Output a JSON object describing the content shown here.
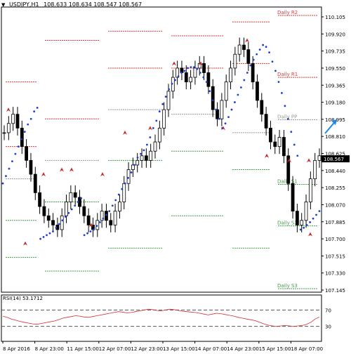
{
  "window": {
    "symbol_caption": "USDJPY,H1",
    "ohlc_caption": "108.633 108.634 108.547 108.567"
  },
  "chart_data": {
    "type": "candlestick",
    "symbol": "USDJPY",
    "timeframe": "H1",
    "price_axis": {
      "ticks": [
        "110.105",
        "109.920",
        "109.735",
        "109.550",
        "109.365",
        "109.180",
        "108.995",
        "108.810",
        "108.625",
        "108.440",
        "108.255",
        "108.070",
        "107.885",
        "107.700",
        "107.515",
        "107.330",
        "107.145"
      ],
      "range": [
        107.145,
        110.105
      ]
    },
    "time_axis": {
      "ticks": [
        "8 Apr 2016",
        "8 Apr 23:00",
        "11 Apr 15:00",
        "12 Apr 07:00",
        "12 Apr 23:00",
        "13 Apr 15:00",
        "14 Apr 07:00",
        "14 Apr 23:00",
        "15 Apr 15:00",
        "18 Apr 07:00"
      ]
    },
    "current_price": "108.567",
    "pivot_labels": [
      {
        "name": "Daily R2",
        "price": 110.12,
        "color": "#e53935"
      },
      {
        "name": "Daily R1",
        "price": 109.45,
        "color": "#e53935"
      },
      {
        "name": "Daily PP",
        "price": 108.99,
        "color": "#999999"
      },
      {
        "name": "Daily S1",
        "price": 108.29,
        "color": "#43a047"
      },
      {
        "name": "Daily S2",
        "price": 107.84,
        "color": "#43a047"
      },
      {
        "name": "Daily S3",
        "price": 107.16,
        "color": "#43a047"
      }
    ],
    "price_series": [
      108.85,
      108.95,
      109.05,
      108.9,
      108.7,
      108.55,
      108.4,
      108.2,
      108.05,
      107.95,
      107.9,
      107.85,
      107.8,
      107.95,
      108.1,
      108.2,
      108.15,
      108.05,
      107.95,
      107.85,
      107.8,
      107.9,
      108.0,
      107.9,
      107.85,
      108.0,
      108.1,
      108.3,
      108.45,
      108.5,
      108.55,
      108.6,
      108.55,
      108.65,
      108.75,
      108.9,
      109.1,
      109.3,
      109.45,
      109.55,
      109.5,
      109.4,
      109.45,
      109.55,
      109.6,
      109.5,
      109.35,
      109.1,
      109.0,
      109.2,
      109.4,
      109.55,
      109.7,
      109.8,
      109.75,
      109.6,
      109.4,
      109.2,
      109.05,
      108.9,
      108.75,
      108.7,
      108.8,
      108.6,
      108.3,
      108.0,
      107.85,
      107.9,
      108.1,
      108.35,
      108.55,
      108.6
    ],
    "psar_dots": [
      108.3,
      108.38,
      108.46,
      108.54,
      108.62,
      108.7,
      108.78,
      108.86,
      108.94,
      109.0,
      109.08,
      109.12,
      107.7,
      107.72,
      107.74,
      107.76,
      107.78,
      107.82,
      107.86,
      107.9,
      107.94,
      107.98,
      108.02,
      108.06,
      108.1,
      108.14,
      107.74,
      107.76,
      107.78,
      107.8,
      107.84,
      107.88,
      107.92,
      107.96,
      108.0,
      108.06,
      108.12,
      108.18,
      108.24,
      108.3,
      108.36,
      108.42,
      108.5,
      108.58,
      108.62,
      108.66,
      108.72,
      108.8,
      108.9,
      108.98,
      109.08,
      109.16,
      109.24,
      109.32,
      109.38,
      109.42,
      109.46,
      109.5,
      109.52,
      109.55,
      109.56,
      109.56,
      109.54,
      109.5,
      109.45,
      109.4,
      109.3,
      109.2,
      109.1,
      109.0,
      108.9,
      108.95,
      109.02,
      109.1,
      109.18,
      109.26,
      109.34,
      109.42,
      109.5,
      109.58,
      109.64,
      109.7,
      109.75,
      109.8,
      109.78,
      109.72,
      109.62,
      109.52,
      109.4,
      109.28,
      109.14,
      109.0,
      108.86,
      108.72,
      108.6,
      107.8,
      107.82,
      107.85,
      107.88,
      107.92,
      107.96,
      108.0
    ],
    "rsi": {
      "label": "RSI(14) 53.1712",
      "period": 14,
      "value": 53.1712,
      "levels": [
        "70",
        "30"
      ],
      "values": [
        55,
        52,
        48,
        45,
        42,
        40,
        38,
        36,
        35,
        37,
        39,
        41,
        43,
        46,
        50,
        52,
        54,
        56,
        55,
        53,
        52,
        54,
        56,
        58,
        60,
        62,
        64,
        66,
        65,
        63,
        64,
        66,
        68,
        70,
        72,
        71,
        69,
        68,
        70,
        72,
        71,
        69,
        67,
        66,
        65,
        64,
        62,
        60,
        58,
        60,
        62,
        61,
        59,
        57,
        55,
        52,
        50,
        48,
        46,
        44,
        40,
        36,
        33,
        31,
        30,
        31,
        32,
        31,
        30,
        31,
        32,
        35,
        40,
        48,
        53
      ]
    }
  }
}
